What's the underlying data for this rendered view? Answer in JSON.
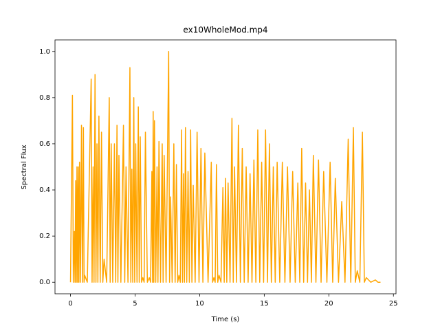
{
  "chart_data": {
    "type": "line",
    "title": "ex10WholeMod.mp4",
    "x_label": "Time (s)",
    "y_label": "Spectral Flux",
    "color": "orange",
    "xlim": [
      -1.2,
      25.2
    ],
    "ylim": [
      -0.05,
      1.05
    ],
    "xticks": [
      0,
      5,
      10,
      15,
      20,
      25
    ],
    "yticks": [
      {
        "value": 0,
        "label": "0.0"
      },
      {
        "value": 0.2,
        "label": "0.2"
      },
      {
        "value": 0.4,
        "label": "0.4"
      },
      {
        "value": 0.6,
        "label": "0.6"
      },
      {
        "value": 0.8,
        "label": "0.8"
      },
      {
        "value": 1,
        "label": "1.0"
      }
    ],
    "x": [
      0,
      0.15,
      0.22,
      0.3,
      0.35,
      0.4,
      0.45,
      0.5,
      0.55,
      0.6,
      0.65,
      0.7,
      0.77,
      0.85,
      0.92,
      1.0,
      1.05,
      1.1,
      1.3,
      1.6,
      1.67,
      1.75,
      1.82,
      1.9,
      1.97,
      2.05,
      2.12,
      2.2,
      2.3,
      2.4,
      2.5,
      2.6,
      2.8,
      3.0,
      3.07,
      3.15,
      3.27,
      3.4,
      3.5,
      3.6,
      3.67,
      3.75,
      3.9,
      4.1,
      4.2,
      4.3,
      4.45,
      4.6,
      4.67,
      4.75,
      4.82,
      4.9,
      4.97,
      5.05,
      5.15,
      5.25,
      5.32,
      5.4,
      5.5,
      5.6,
      5.7,
      5.8,
      5.95,
      6.1,
      6.2,
      6.3,
      6.35,
      6.4,
      6.45,
      6.5,
      6.6,
      6.7,
      6.77,
      6.85,
      6.97,
      7.1,
      7.17,
      7.25,
      7.4,
      7.6,
      7.67,
      7.75,
      7.87,
      8.0,
      8.1,
      8.2,
      8.3,
      8.4,
      8.5,
      8.6,
      8.67,
      8.75,
      8.82,
      8.9,
      9.0,
      9.1,
      9.2,
      9.3,
      9.4,
      9.5,
      9.65,
      9.8,
      9.95,
      10.1,
      10.25,
      10.4,
      10.65,
      10.9,
      11.0,
      11.1,
      11.2,
      11.3,
      11.4,
      11.5,
      11.65,
      11.8,
      11.9,
      12.0,
      12.1,
      12.2,
      12.35,
      12.5,
      12.6,
      12.7,
      12.85,
      13.0,
      13.15,
      13.3,
      13.45,
      13.6,
      13.75,
      13.9,
      14.05,
      14.2,
      14.35,
      14.5,
      14.65,
      14.8,
      14.95,
      15.1,
      15.25,
      15.4,
      15.55,
      15.7,
      15.85,
      16.0,
      16.2,
      16.4,
      16.6,
      16.8,
      17.0,
      17.2,
      17.4,
      17.6,
      17.75,
      17.9,
      18.05,
      18.2,
      18.35,
      18.5,
      18.65,
      18.8,
      19.0,
      19.2,
      19.4,
      19.6,
      19.85,
      20.1,
      20.3,
      20.5,
      20.75,
      21.0,
      21.25,
      21.5,
      21.7,
      21.9,
      22.05,
      22.2,
      22.4,
      22.6,
      22.75,
      22.9,
      23.25,
      23.6,
      23.8,
      24.0
    ],
    "values": [
      0,
      0.81,
      0,
      0.22,
      0,
      0.44,
      0,
      0.5,
      0,
      0.5,
      0,
      0.52,
      0,
      0.68,
      0,
      0.67,
      0,
      0.03,
      0,
      0.88,
      0,
      0.5,
      0,
      0.9,
      0,
      0.6,
      0,
      0.72,
      0,
      0.65,
      0,
      0.1,
      0,
      0.8,
      0,
      0.6,
      0,
      0.6,
      0,
      0.68,
      0,
      0.55,
      0,
      0.68,
      0,
      0.5,
      0,
      0.93,
      0,
      0.49,
      0,
      0.8,
      0,
      0.6,
      0,
      0.76,
      0,
      0.63,
      0,
      0.02,
      0,
      0.65,
      0,
      0.02,
      0,
      0.48,
      0,
      0.74,
      0,
      0.7,
      0,
      0.5,
      0,
      0.61,
      0,
      0.6,
      0,
      0.55,
      0,
      1.0,
      0,
      0.37,
      0,
      0.6,
      0,
      0.51,
      0,
      0.03,
      0,
      0.66,
      0,
      0.47,
      0,
      0.67,
      0,
      0.48,
      0,
      0.66,
      0,
      0.42,
      0,
      0.65,
      0,
      0.58,
      0,
      0.56,
      0,
      0.52,
      0,
      0.02,
      0,
      0.51,
      0,
      0.03,
      0,
      0.41,
      0,
      0.45,
      0,
      0.43,
      0,
      0.71,
      0,
      0.5,
      0,
      0.68,
      0,
      0.58,
      0,
      0.5,
      0,
      0.47,
      0,
      0.53,
      0,
      0.66,
      0,
      0.52,
      0,
      0.66,
      0,
      0.6,
      0,
      0.5,
      0,
      0.52,
      0,
      0.52,
      0,
      0.5,
      0,
      0.48,
      0,
      0.43,
      0,
      0.58,
      0,
      0.43,
      0,
      0.4,
      0,
      0.55,
      0,
      0.53,
      0,
      0.48,
      0,
      0.52,
      0,
      0.45,
      0,
      0.35,
      0,
      0.62,
      0,
      0.67,
      0,
      0.05,
      0,
      0.65,
      0,
      0.02,
      0,
      0.01,
      0,
      0
    ]
  }
}
